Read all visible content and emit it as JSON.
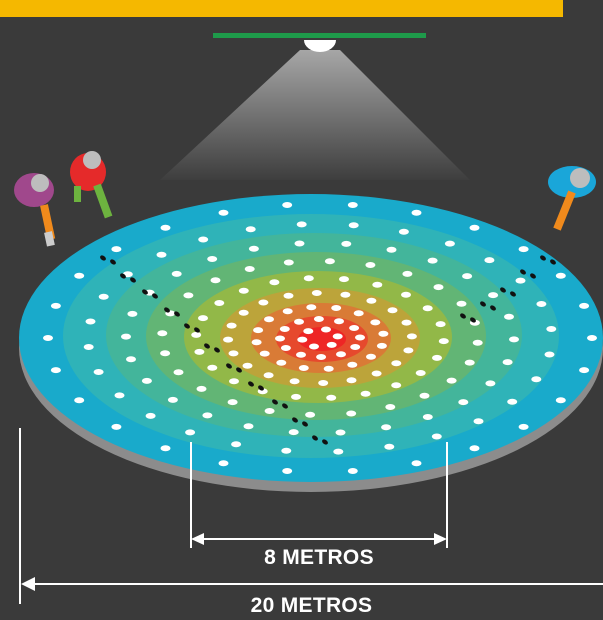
{
  "labels": {
    "inner_diameter": "8 METROS",
    "outer_diameter": "20 METROS"
  },
  "colors": {
    "background": "#3a3a3a",
    "banner": "#f5b800",
    "lamp_bar": "#1e9a4a",
    "rings": [
      "#19aacb",
      "#28b3bf",
      "#3fb6a0",
      "#5fb575",
      "#8fb84a",
      "#b8a93c",
      "#d8853a",
      "#e5532f",
      "#ee2525"
    ],
    "dots": "#ffffff",
    "footprints": "#111111"
  },
  "icons": [
    "spotlight-icon",
    "person-icon",
    "footprint-icon",
    "dimension-arrow-icon"
  ]
}
